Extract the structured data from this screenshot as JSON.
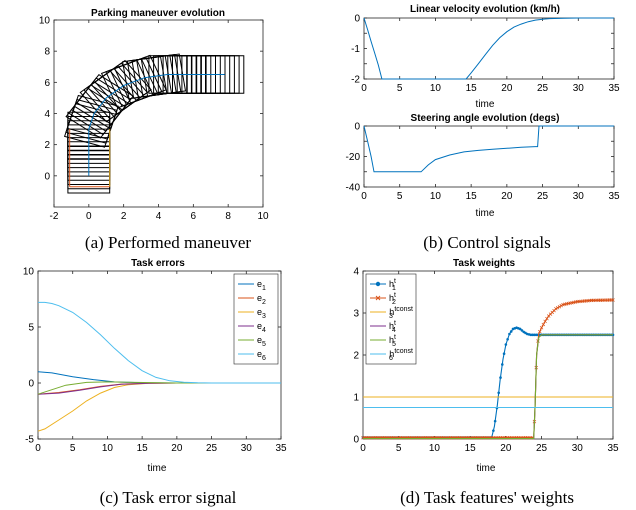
{
  "colors": {
    "blue": "#0072BD",
    "red": "#D95319",
    "orange": "#EDB120",
    "purple": "#7E2F8E",
    "green": "#77AC30",
    "cyan": "#4DBEEE",
    "black": "#000000"
  },
  "captions": {
    "a": "(a) Performed maneuver",
    "b": "(b) Control signals",
    "c": "(c) Task error signal",
    "d": "(d) Task features' weights"
  },
  "chart_data": [
    {
      "id": "maneuver",
      "type": "line",
      "title": "Parking maneuver evolution",
      "xlabel": "",
      "ylabel": "",
      "xlim": [
        -2,
        10
      ],
      "ylim": [
        -2,
        10
      ],
      "xticks": [
        -2,
        0,
        2,
        4,
        6,
        8,
        10
      ],
      "yticks": [
        0,
        2,
        4,
        6,
        8,
        10
      ],
      "path_center": [
        [
          0,
          0
        ],
        [
          0,
          3
        ],
        [
          4.5,
          6.5
        ],
        [
          7.8,
          6.5
        ]
      ],
      "path_x": [
        0,
        0,
        0,
        0.3,
        1.0,
        2.0,
        3.2,
        4.5,
        6.0,
        7.2,
        7.8
      ],
      "path_y": [
        0,
        1.5,
        3.0,
        4.0,
        5.0,
        5.8,
        6.3,
        6.5,
        6.5,
        6.5,
        6.5
      ],
      "vehicle_length": 2.2,
      "vehicle_width": 2.4,
      "red_line": [
        [
          -1.1,
          -0.7
        ],
        [
          -1.1,
          3
        ]
      ],
      "orange_line": [
        [
          1.2,
          -0.7
        ],
        [
          1.2,
          3
        ]
      ],
      "bottom_line": [
        [
          -1.1,
          -0.7
        ],
        [
          1.2,
          -0.7
        ]
      ],
      "grid": false
    },
    {
      "id": "velocity",
      "type": "line",
      "title": "Linear velocity evolution (km/h)",
      "xlabel": "time",
      "ylabel": "",
      "xlim": [
        0,
        35
      ],
      "ylim": [
        -2,
        0
      ],
      "xticks": [
        0,
        5,
        10,
        15,
        20,
        25,
        30,
        35
      ],
      "yticks": [
        -2,
        -1.5,
        -1,
        -0.5,
        0
      ],
      "ytick_labels": [
        "-2",
        "",
        "-1",
        "",
        "0"
      ],
      "x": [
        0,
        0.5,
        1,
        1.5,
        2,
        2.5,
        14.3,
        15,
        16,
        17,
        18,
        19,
        20,
        21,
        22,
        23,
        24,
        25,
        26,
        28,
        30,
        35
      ],
      "y": [
        0,
        -0.38,
        -0.77,
        -1.15,
        -1.54,
        -2,
        -2,
        -1.8,
        -1.5,
        -1.2,
        -0.9,
        -0.65,
        -0.45,
        -0.3,
        -0.2,
        -0.12,
        -0.07,
        -0.04,
        -0.02,
        -0.005,
        0,
        0
      ],
      "grid": false
    },
    {
      "id": "steering",
      "type": "line",
      "title": "Steering angle evolution (degs)",
      "xlabel": "time",
      "ylabel": "",
      "xlim": [
        0,
        35
      ],
      "ylim": [
        -40,
        0
      ],
      "xticks": [
        0,
        5,
        10,
        15,
        20,
        25,
        30,
        35
      ],
      "yticks": [
        -40,
        -30,
        -20,
        -10,
        0
      ],
      "ytick_labels": [
        "-40",
        "",
        "-20",
        "",
        "0"
      ],
      "x": [
        0,
        0.5,
        1,
        1.4,
        8,
        9,
        10,
        12,
        14,
        16,
        18,
        20,
        22,
        24,
        24.3,
        24.5,
        35
      ],
      "y": [
        0,
        -10,
        -20,
        -30,
        -30,
        -25.5,
        -22,
        -19,
        -17,
        -16,
        -15.2,
        -14.6,
        -14,
        -13.5,
        -13.5,
        0,
        0
      ],
      "grid": false
    },
    {
      "id": "errors",
      "type": "line",
      "title": "Task errors",
      "xlabel": "time",
      "ylabel": "",
      "xlim": [
        0,
        35
      ],
      "ylim": [
        -5,
        10
      ],
      "xticks": [
        0,
        5,
        10,
        15,
        20,
        25,
        30,
        35
      ],
      "yticks": [
        -5,
        0,
        5,
        10
      ],
      "legend_position": "top-right",
      "series": [
        {
          "name": "e",
          "sub": "1",
          "color": "#0072BD",
          "x": [
            0,
            2,
            5,
            8,
            11,
            15,
            20,
            35
          ],
          "y": [
            1,
            0.9,
            0.55,
            0.3,
            0.1,
            0.02,
            0,
            0
          ]
        },
        {
          "name": "e",
          "sub": "2",
          "color": "#D95319",
          "x": [
            0,
            3,
            6,
            9,
            12,
            16,
            20,
            35
          ],
          "y": [
            -1,
            -0.85,
            -0.6,
            -0.3,
            -0.1,
            -0.02,
            0,
            0
          ]
        },
        {
          "name": "e",
          "sub": "3",
          "color": "#EDB120",
          "x": [
            0,
            1,
            3,
            5,
            7,
            9,
            11,
            13,
            16,
            20,
            25,
            35
          ],
          "y": [
            -4.3,
            -4.1,
            -3.3,
            -2.5,
            -1.6,
            -0.9,
            -0.4,
            -0.15,
            -0.03,
            0,
            0,
            0
          ]
        },
        {
          "name": "e",
          "sub": "4",
          "color": "#7E2F8E",
          "x": [
            0,
            3,
            6,
            9,
            12,
            16,
            20,
            35
          ],
          "y": [
            -1,
            -0.9,
            -0.65,
            -0.35,
            -0.12,
            -0.03,
            0,
            0
          ]
        },
        {
          "name": "e",
          "sub": "5",
          "color": "#77AC30",
          "x": [
            0,
            2,
            4,
            7,
            10,
            14,
            20,
            35
          ],
          "y": [
            -1,
            -0.6,
            -0.2,
            0.05,
            0.1,
            0.05,
            0,
            0
          ]
        },
        {
          "name": "e",
          "sub": "6",
          "color": "#4DBEEE",
          "x": [
            0,
            1,
            2,
            3,
            5,
            7,
            9,
            11,
            13,
            15,
            17,
            19,
            21,
            23,
            25,
            35
          ],
          "y": [
            7.2,
            7.2,
            7.1,
            6.9,
            6.3,
            5.4,
            4.3,
            3.1,
            2.0,
            1.1,
            0.5,
            0.2,
            0.07,
            0.02,
            0,
            0
          ]
        }
      ],
      "grid": false
    },
    {
      "id": "weights",
      "type": "line",
      "title": "Task weights",
      "xlabel": "time",
      "ylabel": "",
      "xlim": [
        0,
        35
      ],
      "ylim": [
        0,
        4
      ],
      "xticks": [
        0,
        5,
        10,
        15,
        20,
        25,
        30,
        35
      ],
      "yticks": [
        0,
        1,
        2,
        3,
        4
      ],
      "legend_position": "top-left",
      "series": [
        {
          "name": "h",
          "sub": "1",
          "sup": "t",
          "color": "#0072BD",
          "marker": "dot",
          "x": [
            0,
            18,
            18.4,
            18.8,
            19.2,
            19.6,
            20,
            20.5,
            21,
            21.5,
            22,
            22.5,
            23,
            23.5,
            24,
            25,
            26,
            28,
            35
          ],
          "y": [
            0.03,
            0.03,
            0.3,
            0.8,
            1.4,
            1.9,
            2.25,
            2.5,
            2.62,
            2.65,
            2.62,
            2.55,
            2.5,
            2.48,
            2.48,
            2.48,
            2.48,
            2.48,
            2.48
          ]
        },
        {
          "name": "h",
          "sub": "2",
          "sup": "t",
          "color": "#D95319",
          "marker": "x",
          "x": [
            0,
            23.9,
            24.1,
            24.3,
            24.6,
            25,
            25.5,
            26,
            27,
            28,
            30,
            32,
            35
          ],
          "y": [
            0.03,
            0.03,
            0.8,
            2.0,
            2.5,
            2.65,
            2.8,
            2.93,
            3.1,
            3.2,
            3.27,
            3.3,
            3.31
          ]
        },
        {
          "name": "h",
          "sub": "3",
          "sup": "tconst",
          "color": "#EDB120",
          "x": [
            0,
            35
          ],
          "y": [
            1,
            1
          ]
        },
        {
          "name": "h",
          "sub": "4",
          "sup": "t",
          "color": "#7E2F8E",
          "x": [
            0,
            23.9,
            24.1,
            24.3,
            24.6,
            25,
            35
          ],
          "y": [
            0.01,
            0.01,
            0.8,
            2.0,
            2.42,
            2.48,
            2.48
          ]
        },
        {
          "name": "h",
          "sub": "5",
          "sup": "t",
          "color": "#77AC30",
          "x": [
            0,
            23.9,
            24.1,
            24.3,
            24.6,
            25,
            35
          ],
          "y": [
            0.01,
            0.01,
            0.8,
            2.0,
            2.42,
            2.48,
            2.48
          ]
        },
        {
          "name": "h",
          "sub": "6",
          "sup": "tconst",
          "color": "#4DBEEE",
          "x": [
            0,
            35
          ],
          "y": [
            0.75,
            0.75
          ]
        }
      ],
      "grid": false
    }
  ]
}
